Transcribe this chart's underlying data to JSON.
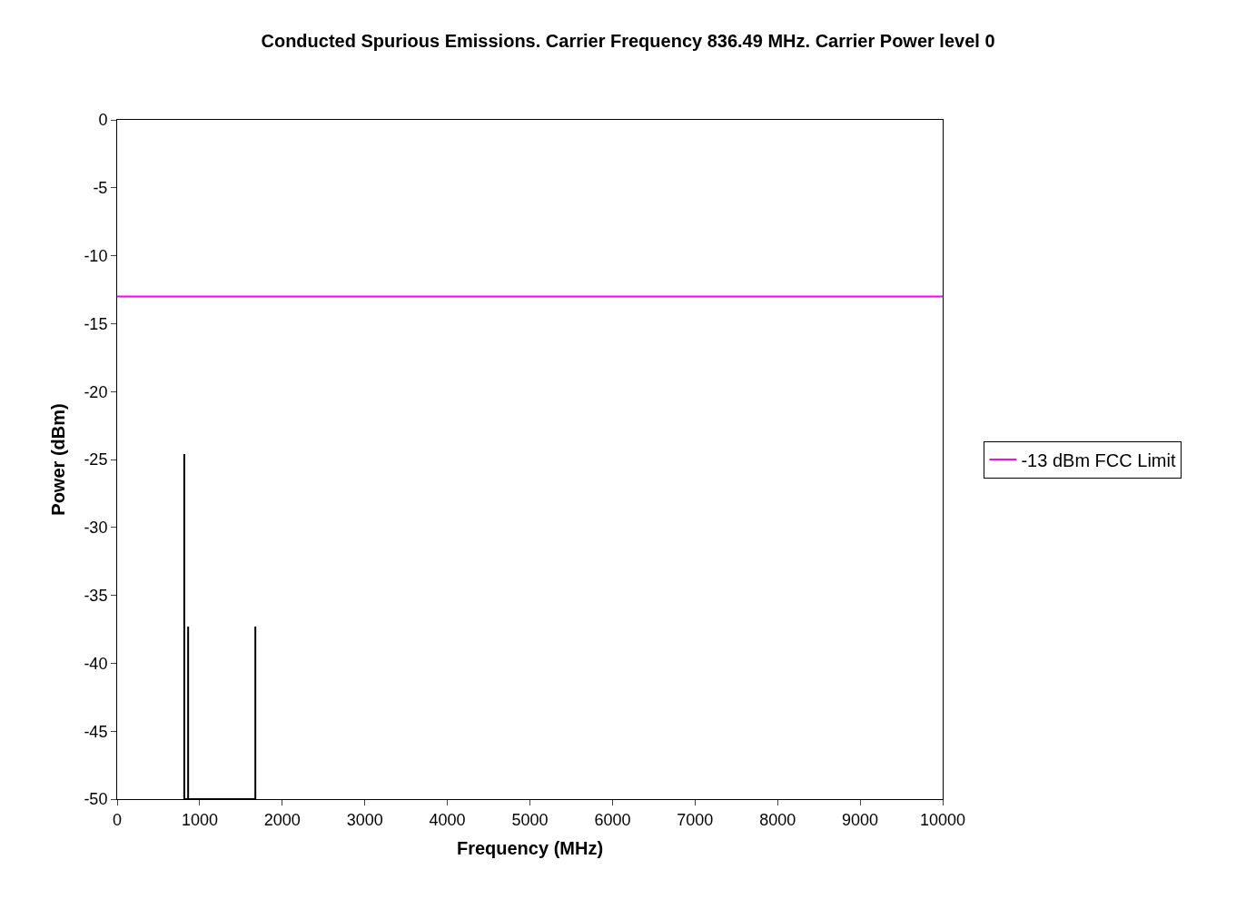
{
  "chart_data": {
    "type": "line",
    "title": "Conducted Spurious Emissions. Carrier Frequency 836.49 MHz. Carrier Power level 0",
    "xlabel": "Frequency (MHz)",
    "ylabel": "Power (dBm)",
    "series": [
      {
        "color": "#000000",
        "x": [
          813,
          813,
          813,
          860,
          860,
          860,
          1674,
          1674,
          1674
        ],
        "values": [
          -50,
          -24.6,
          -50,
          -50,
          -37.3,
          -50,
          -50,
          -37.3,
          -50
        ]
      },
      {
        "name": "-13 dBm FCC Limit",
        "color": "#ff00ff",
        "x": [
          0,
          10000
        ],
        "values": [
          -13,
          -13
        ]
      }
    ],
    "xlim": [
      0,
      10000
    ],
    "xticks": [
      0,
      1000,
      2000,
      3000,
      4000,
      5000,
      6000,
      7000,
      8000,
      9000,
      10000
    ],
    "ylim": [
      -50,
      0
    ],
    "yticks": [
      0,
      -5,
      -10,
      -15,
      -20,
      -25,
      -30,
      -35,
      -40,
      -45,
      -50
    ],
    "legend": "right",
    "marker": "none",
    "line_style": "solid"
  }
}
